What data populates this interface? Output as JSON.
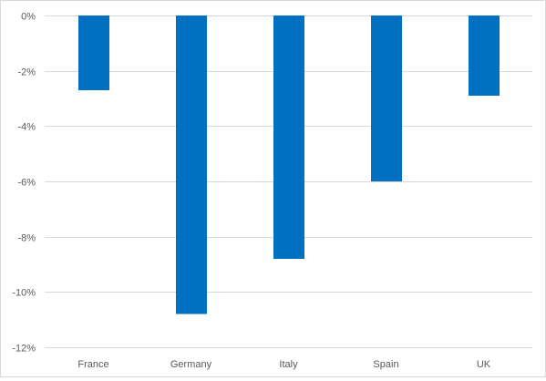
{
  "chart_data": {
    "type": "bar",
    "title": "",
    "xlabel": "",
    "ylabel": "",
    "categories": [
      "France",
      "Germany",
      "Italy",
      "Spain",
      "UK"
    ],
    "values": [
      -2.7,
      -10.8,
      -8.8,
      -6.0,
      -2.9
    ],
    "ylim": [
      -12,
      0
    ],
    "yticks": [
      0,
      -2,
      -4,
      -6,
      -8,
      -10,
      -12
    ],
    "ytick_labels": [
      "0%",
      "-2%",
      "-4%",
      "-6%",
      "-8%",
      "-10%",
      "-12%"
    ],
    "grid": true,
    "colors": {
      "bar": "#0070C0",
      "grid": "#d9d9d9",
      "text": "#595959"
    }
  }
}
